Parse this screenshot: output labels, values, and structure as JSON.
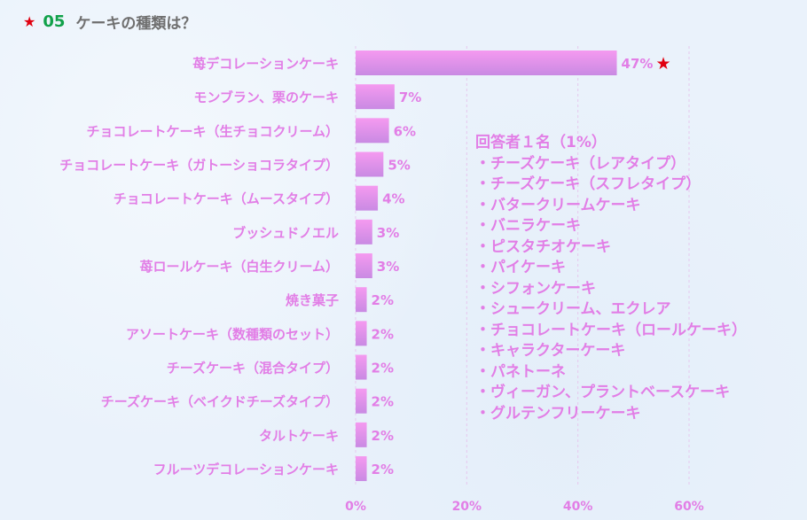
{
  "title": {
    "star_icon": "star-icon",
    "number": "05",
    "text": "ケーキの種類は？"
  },
  "chart_data": {
    "type": "bar",
    "orientation": "horizontal",
    "categories": [
      "苺デコレーションケーキ",
      "モンブラン、栗のケーキ",
      "チョコレートケーキ（生チョコクリーム）",
      "チョコレートケーキ（ガトーショコラタイプ）",
      "チョコレートケーキ（ムースタイプ）",
      "ブッシュドノエル",
      "苺ロールケーキ（白生クリーム）",
      "焼き菓子",
      "アソートケーキ（数種類のセット）",
      "チーズケーキ（混合タイプ）",
      "チーズケーキ（ベイクドチーズタイプ）",
      "タルトケーキ",
      "フルーツデコレーションケーキ"
    ],
    "values": [
      47,
      7,
      6,
      5,
      4,
      3,
      3,
      2,
      2,
      2,
      2,
      2,
      2
    ],
    "value_labels": [
      "47%",
      "7%",
      "6%",
      "5%",
      "4%",
      "3%",
      "3%",
      "2%",
      "2%",
      "2%",
      "2%",
      "2%",
      "2%"
    ],
    "top_marker": "star-icon",
    "xlim": [
      0,
      60
    ],
    "xticks": [
      0,
      20,
      40,
      60
    ],
    "xtick_labels": [
      "0%",
      "20%",
      "40%",
      "60%"
    ],
    "grid": true,
    "colors": {
      "bar_top": "#f59af0",
      "bar_bottom": "#c98ae3",
      "label": "#e27ee6",
      "star": "#e00010"
    }
  },
  "note": {
    "heading": "回答者１名（1%）",
    "items": [
      "・チーズケーキ（レアタイプ）",
      "・チーズケーキ（スフレタイプ）",
      "・バタークリームケーキ",
      "・バニラケーキ",
      "・ピスタチオケーキ",
      "・パイケーキ",
      "・シフォンケーキ",
      "・シュークリーム、エクレア",
      "・チョコレートケーキ（ロールケーキ）",
      "・キャラクターケーキ",
      "・パネトーネ",
      "・ヴィーガン、プラントベースケーキ",
      "・グルテンフリーケーキ"
    ]
  }
}
